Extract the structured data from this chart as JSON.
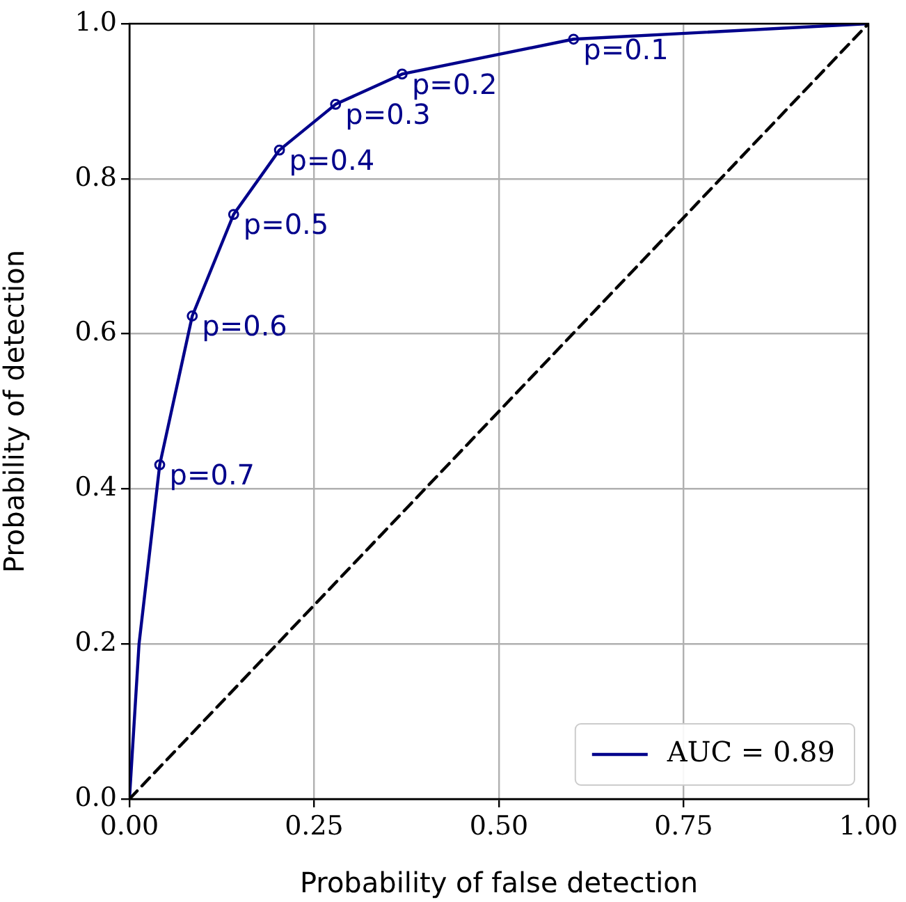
{
  "chart_data": {
    "type": "line",
    "xlabel": "Probability of false detection",
    "ylabel": "Probability of detection",
    "xlim": [
      0,
      1
    ],
    "ylim": [
      0,
      1
    ],
    "xticks": [
      {
        "value": 0,
        "label": "0.00"
      },
      {
        "value": 0.25,
        "label": "0.25"
      },
      {
        "value": 0.5,
        "label": "0.50"
      },
      {
        "value": 0.75,
        "label": "0.75"
      },
      {
        "value": 1,
        "label": "1.00"
      }
    ],
    "yticks": [
      {
        "value": 0,
        "label": "0.0"
      },
      {
        "value": 0.2,
        "label": "0.2"
      },
      {
        "value": 0.4,
        "label": "0.4"
      },
      {
        "value": 0.6,
        "label": "0.6"
      },
      {
        "value": 0.8,
        "label": "0.8"
      },
      {
        "value": 1,
        "label": "1.0"
      }
    ],
    "grid": true,
    "legend": "bottom right",
    "series": [
      {
        "name": "AUC = 0.89",
        "color": "#00008b",
        "marker": "none",
        "x": [
          0,
          0.013,
          0.041,
          0.085,
          0.141,
          0.203,
          0.279,
          0.369,
          0.601,
          1
        ],
        "values": [
          0,
          0.2,
          0.431,
          0.623,
          0.754,
          0.837,
          0.896,
          0.935,
          0.98,
          1
        ]
      },
      {
        "type": "scatter",
        "color": "#00008b",
        "marker": "circle",
        "x": [
          0.601,
          0.369,
          0.279,
          0.203,
          0.141,
          0.085,
          0.041
        ],
        "values": [
          0.98,
          0.935,
          0.896,
          0.837,
          0.754,
          0.623,
          0.431
        ]
      },
      {
        "color": "#000000",
        "marker": "none",
        "line_style": "dashed",
        "x": [
          0,
          1
        ],
        "values": [
          0,
          1
        ]
      }
    ],
    "annotations": [
      {
        "text": "p=0.1",
        "x": 0.601,
        "y": 0.98
      },
      {
        "text": "p=0.2",
        "x": 0.369,
        "y": 0.935
      },
      {
        "text": "p=0.3",
        "x": 0.279,
        "y": 0.896
      },
      {
        "text": "p=0.4",
        "x": 0.203,
        "y": 0.837
      },
      {
        "text": "p=0.5",
        "x": 0.141,
        "y": 0.754
      },
      {
        "text": "p=0.6",
        "x": 0.085,
        "y": 0.623
      },
      {
        "text": "p=0.7",
        "x": 0.041,
        "y": 0.431
      }
    ]
  }
}
